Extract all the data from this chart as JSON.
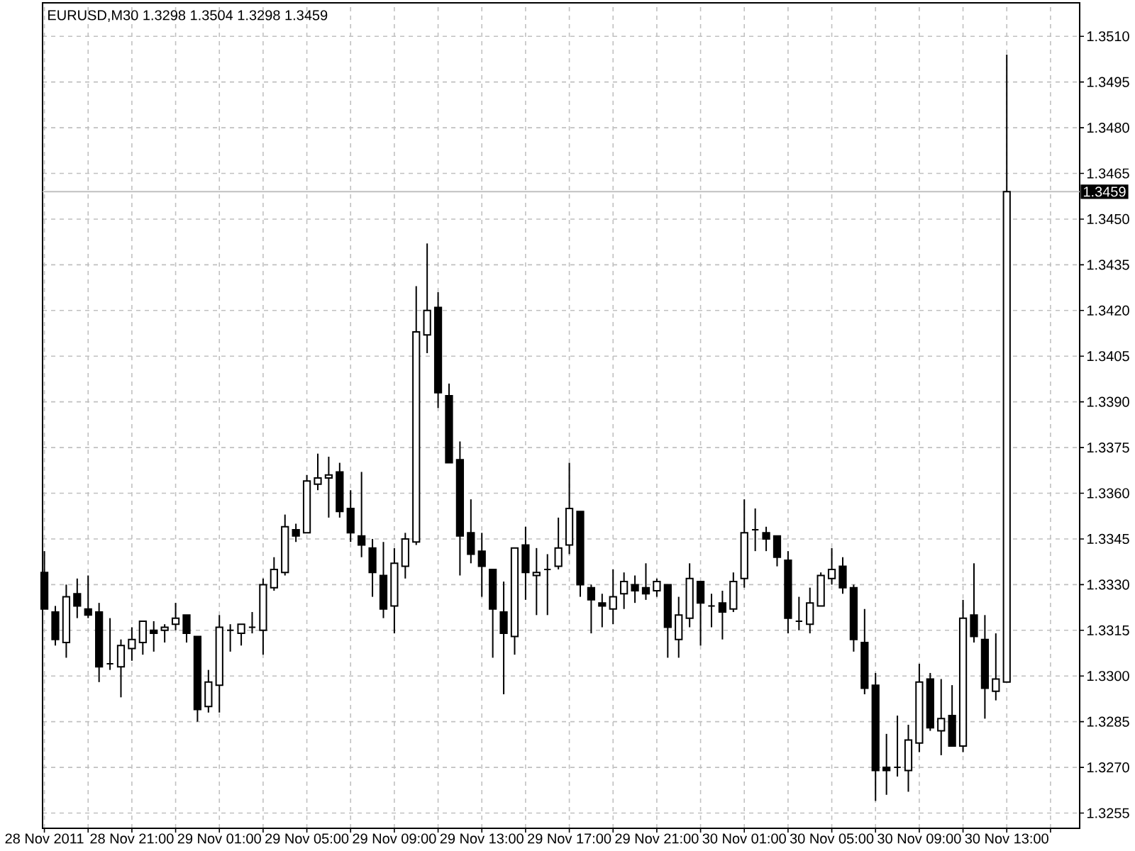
{
  "chart_data": {
    "type": "candlestick",
    "title": "EURUSD,M30 1.3298 1.3504 1.3298 1.3459",
    "x": [
      "2011-11-28T17:00",
      "2011-11-28T17:30",
      "2011-11-28T18:00",
      "2011-11-28T18:30",
      "2011-11-28T19:00",
      "2011-11-28T19:30",
      "2011-11-28T20:00",
      "2011-11-28T20:30",
      "2011-11-28T21:00",
      "2011-11-28T21:30",
      "2011-11-28T22:00",
      "2011-11-28T22:30",
      "2011-11-28T23:00",
      "2011-11-28T23:30",
      "2011-11-29T00:00",
      "2011-11-29T00:30",
      "2011-11-29T01:00",
      "2011-11-29T01:30",
      "2011-11-29T02:00",
      "2011-11-29T02:30",
      "2011-11-29T03:00",
      "2011-11-29T03:30",
      "2011-11-29T04:00",
      "2011-11-29T04:30",
      "2011-11-29T05:00",
      "2011-11-29T05:30",
      "2011-11-29T06:00",
      "2011-11-29T06:30",
      "2011-11-29T07:00",
      "2011-11-29T07:30",
      "2011-11-29T08:00",
      "2011-11-29T08:30",
      "2011-11-29T09:00",
      "2011-11-29T09:30",
      "2011-11-29T10:00",
      "2011-11-29T10:30",
      "2011-11-29T11:00",
      "2011-11-29T11:30",
      "2011-11-29T12:00",
      "2011-11-29T12:30",
      "2011-11-29T13:00",
      "2011-11-29T13:30",
      "2011-11-29T14:00",
      "2011-11-29T14:30",
      "2011-11-29T15:00",
      "2011-11-29T15:30",
      "2011-11-29T16:00",
      "2011-11-29T16:30",
      "2011-11-29T17:00",
      "2011-11-29T17:30",
      "2011-11-29T18:00",
      "2011-11-29T18:30",
      "2011-11-29T19:00",
      "2011-11-29T19:30",
      "2011-11-29T20:00",
      "2011-11-29T20:30",
      "2011-11-29T21:00",
      "2011-11-29T21:30",
      "2011-11-29T22:00",
      "2011-11-29T22:30",
      "2011-11-29T23:00",
      "2011-11-29T23:30",
      "2011-11-30T00:00",
      "2011-11-30T00:30",
      "2011-11-30T01:00",
      "2011-11-30T01:30",
      "2011-11-30T02:00",
      "2011-11-30T02:30",
      "2011-11-30T03:00",
      "2011-11-30T03:30",
      "2011-11-30T04:00",
      "2011-11-30T04:30",
      "2011-11-30T05:00",
      "2011-11-30T05:30",
      "2011-11-30T06:00",
      "2011-11-30T06:30",
      "2011-11-30T07:00",
      "2011-11-30T07:30",
      "2011-11-30T08:00",
      "2011-11-30T08:30",
      "2011-11-30T09:00",
      "2011-11-30T09:30",
      "2011-11-30T10:00",
      "2011-11-30T10:30",
      "2011-11-30T11:00",
      "2011-11-30T11:30",
      "2011-11-30T12:00",
      "2011-11-30T12:30",
      "2011-11-30T13:00"
    ],
    "ohlc": [
      [
        1.3334,
        1.3341,
        1.3322,
        1.3322
      ],
      [
        1.3321,
        1.3323,
        1.331,
        1.3312
      ],
      [
        1.3311,
        1.333,
        1.3306,
        1.3326
      ],
      [
        1.3327,
        1.3332,
        1.3319,
        1.3323
      ],
      [
        1.3322,
        1.3333,
        1.3319,
        1.332
      ],
      [
        1.3321,
        1.3324,
        1.3298,
        1.3303
      ],
      [
        1.3304,
        1.3319,
        1.3302,
        1.3304
      ],
      [
        1.3303,
        1.3312,
        1.3293,
        1.331
      ],
      [
        1.3309,
        1.3316,
        1.3305,
        1.3312
      ],
      [
        1.3311,
        1.3318,
        1.3307,
        1.3318
      ],
      [
        1.3315,
        1.3318,
        1.3308,
        1.3314
      ],
      [
        1.3315,
        1.3317,
        1.3311,
        1.3316
      ],
      [
        1.3317,
        1.3324,
        1.3315,
        1.3319
      ],
      [
        1.332,
        1.332,
        1.3311,
        1.3314
      ],
      [
        1.3313,
        1.3313,
        1.3285,
        1.3289
      ],
      [
        1.329,
        1.3302,
        1.3288,
        1.3298
      ],
      [
        1.3297,
        1.332,
        1.3288,
        1.3316
      ],
      [
        1.3315,
        1.3317,
        1.3308,
        1.3315
      ],
      [
        1.3314,
        1.3317,
        1.331,
        1.3317
      ],
      [
        1.3316,
        1.3321,
        1.3314,
        1.3316
      ],
      [
        1.3315,
        1.3332,
        1.3307,
        1.333
      ],
      [
        1.3329,
        1.3339,
        1.3328,
        1.3335
      ],
      [
        1.3334,
        1.3353,
        1.3333,
        1.3349
      ],
      [
        1.3348,
        1.335,
        1.3344,
        1.3346
      ],
      [
        1.3347,
        1.3366,
        1.3347,
        1.3364
      ],
      [
        1.3363,
        1.3373,
        1.3361,
        1.3365
      ],
      [
        1.3365,
        1.3372,
        1.3352,
        1.3366
      ],
      [
        1.3367,
        1.337,
        1.3352,
        1.3354
      ],
      [
        1.3355,
        1.3361,
        1.3344,
        1.3347
      ],
      [
        1.3346,
        1.3367,
        1.3339,
        1.3343
      ],
      [
        1.3342,
        1.3345,
        1.3326,
        1.3334
      ],
      [
        1.3333,
        1.3344,
        1.3319,
        1.3322
      ],
      [
        1.3323,
        1.3342,
        1.3314,
        1.3337
      ],
      [
        1.3336,
        1.3347,
        1.3332,
        1.3345
      ],
      [
        1.3344,
        1.3428,
        1.3343,
        1.3413
      ],
      [
        1.3412,
        1.3442,
        1.3406,
        1.342
      ],
      [
        1.3421,
        1.3426,
        1.3388,
        1.3393
      ],
      [
        1.3392,
        1.3396,
        1.337,
        1.337
      ],
      [
        1.3371,
        1.3377,
        1.3333,
        1.3346
      ],
      [
        1.3347,
        1.3358,
        1.3337,
        1.334
      ],
      [
        1.3341,
        1.3347,
        1.3326,
        1.3336
      ],
      [
        1.3335,
        1.3335,
        1.3306,
        1.3322
      ],
      [
        1.3321,
        1.3331,
        1.3294,
        1.3314
      ],
      [
        1.3313,
        1.3342,
        1.3307,
        1.3342
      ],
      [
        1.3343,
        1.3349,
        1.3325,
        1.3334
      ],
      [
        1.3333,
        1.3342,
        1.332,
        1.3334
      ],
      [
        1.3335,
        1.334,
        1.332,
        1.3335
      ],
      [
        1.3336,
        1.3352,
        1.3335,
        1.3342
      ],
      [
        1.3343,
        1.337,
        1.334,
        1.3355
      ],
      [
        1.3354,
        1.3354,
        1.3326,
        1.333
      ],
      [
        1.3329,
        1.333,
        1.3314,
        1.3325
      ],
      [
        1.3324,
        1.3327,
        1.3316,
        1.3323
      ],
      [
        1.3322,
        1.3335,
        1.3317,
        1.3326
      ],
      [
        1.3327,
        1.3334,
        1.3322,
        1.3331
      ],
      [
        1.333,
        1.3333,
        1.3324,
        1.3328
      ],
      [
        1.3329,
        1.3337,
        1.3325,
        1.3327
      ],
      [
        1.3328,
        1.3332,
        1.3326,
        1.3331
      ],
      [
        1.333,
        1.333,
        1.3306,
        1.3316
      ],
      [
        1.3312,
        1.3326,
        1.3306,
        1.332
      ],
      [
        1.3319,
        1.3337,
        1.3316,
        1.3332
      ],
      [
        1.3331,
        1.3331,
        1.331,
        1.3324
      ],
      [
        1.3323,
        1.3327,
        1.3316,
        1.3323
      ],
      [
        1.3324,
        1.3328,
        1.3312,
        1.3321
      ],
      [
        1.3322,
        1.3334,
        1.3321,
        1.3331
      ],
      [
        1.3332,
        1.3358,
        1.3329,
        1.3347
      ],
      [
        1.3348,
        1.3355,
        1.3341,
        1.3348
      ],
      [
        1.3347,
        1.3349,
        1.3341,
        1.3345
      ],
      [
        1.3346,
        1.3346,
        1.3336,
        1.3339
      ],
      [
        1.3338,
        1.3341,
        1.3314,
        1.3319
      ],
      [
        1.3318,
        1.3326,
        1.3315,
        1.3318
      ],
      [
        1.3317,
        1.3329,
        1.3314,
        1.3324
      ],
      [
        1.3323,
        1.3334,
        1.3323,
        1.3333
      ],
      [
        1.3332,
        1.3342,
        1.333,
        1.3335
      ],
      [
        1.3336,
        1.3339,
        1.3327,
        1.3329
      ],
      [
        1.3329,
        1.333,
        1.3308,
        1.3312
      ],
      [
        1.3311,
        1.3322,
        1.3294,
        1.3296
      ],
      [
        1.3297,
        1.3301,
        1.3259,
        1.3269
      ],
      [
        1.327,
        1.3281,
        1.3261,
        1.3269
      ],
      [
        1.327,
        1.3287,
        1.3267,
        1.327
      ],
      [
        1.3269,
        1.3284,
        1.3262,
        1.3279
      ],
      [
        1.3278,
        1.3304,
        1.3275,
        1.3298
      ],
      [
        1.3299,
        1.3301,
        1.3282,
        1.3283
      ],
      [
        1.3282,
        1.3299,
        1.3274,
        1.3286
      ],
      [
        1.3287,
        1.3297,
        1.3277,
        1.3277
      ],
      [
        1.3277,
        1.3325,
        1.3275,
        1.3319
      ],
      [
        1.332,
        1.3337,
        1.3311,
        1.3313
      ],
      [
        1.3312,
        1.332,
        1.3286,
        1.3296
      ],
      [
        1.3295,
        1.3314,
        1.3292,
        1.3299
      ],
      [
        1.3298,
        1.3504,
        1.3298,
        1.3459
      ]
    ],
    "xlim": [
      "2011-11-28T16:55",
      "2011-11-30T16:20"
    ],
    "xticks": [
      {
        "value": "2011-11-28T17:00",
        "label": "28 Nov 2011"
      },
      {
        "value": "2011-11-28T19:00",
        "label": null
      },
      {
        "value": "2011-11-28T21:00",
        "label": "28 Nov 21:00"
      },
      {
        "value": "2011-11-28T23:00",
        "label": null
      },
      {
        "value": "2011-11-29T01:00",
        "label": "29 Nov 01:00"
      },
      {
        "value": "2011-11-29T03:00",
        "label": null
      },
      {
        "value": "2011-11-29T05:00",
        "label": "29 Nov 05:00"
      },
      {
        "value": "2011-11-29T07:00",
        "label": null
      },
      {
        "value": "2011-11-29T09:00",
        "label": "29 Nov 09:00"
      },
      {
        "value": "2011-11-29T11:00",
        "label": null
      },
      {
        "value": "2011-11-29T13:00",
        "label": "29 Nov 13:00"
      },
      {
        "value": "2011-11-29T15:00",
        "label": null
      },
      {
        "value": "2011-11-29T17:00",
        "label": "29 Nov 17:00"
      },
      {
        "value": "2011-11-29T19:00",
        "label": null
      },
      {
        "value": "2011-11-29T21:00",
        "label": "29 Nov 21:00"
      },
      {
        "value": "2011-11-29T23:00",
        "label": null
      },
      {
        "value": "2011-11-30T01:00",
        "label": "30 Nov 01:00"
      },
      {
        "value": "2011-11-30T03:00",
        "label": null
      },
      {
        "value": "2011-11-30T05:00",
        "label": "30 Nov 05:00"
      },
      {
        "value": "2011-11-30T07:00",
        "label": null
      },
      {
        "value": "2011-11-30T09:00",
        "label": "30 Nov 09:00"
      },
      {
        "value": "2011-11-30T11:00",
        "label": null
      },
      {
        "value": "2011-11-30T13:00",
        "label": "30 Nov 13:00"
      },
      {
        "value": "2011-11-30T15:00",
        "label": null
      }
    ],
    "ylim": [
      1.325,
      1.3521
    ],
    "yticks": [
      1.3255,
      {
        "value": 1.327,
        "label": "1.3270"
      },
      1.3285,
      {
        "value": 1.33,
        "label": "1.3300"
      },
      1.3315,
      {
        "value": 1.333,
        "label": "1.3330"
      },
      1.3345,
      {
        "value": 1.336,
        "label": "1.3360"
      },
      1.3375,
      {
        "value": 1.339,
        "label": "1.3390"
      },
      1.3405,
      {
        "value": 1.342,
        "label": "1.3420"
      },
      1.3435,
      {
        "value": 1.345,
        "label": "1.3450"
      },
      1.3465,
      {
        "value": 1.348,
        "label": "1.3480"
      },
      1.3495,
      {
        "value": 1.351,
        "label": "1.3510"
      }
    ],
    "ref_lines": [
      {
        "axis": "y",
        "value": 1.3459,
        "label": "1.3459",
        "color": "#c0c0c0"
      }
    ],
    "grid": true
  }
}
